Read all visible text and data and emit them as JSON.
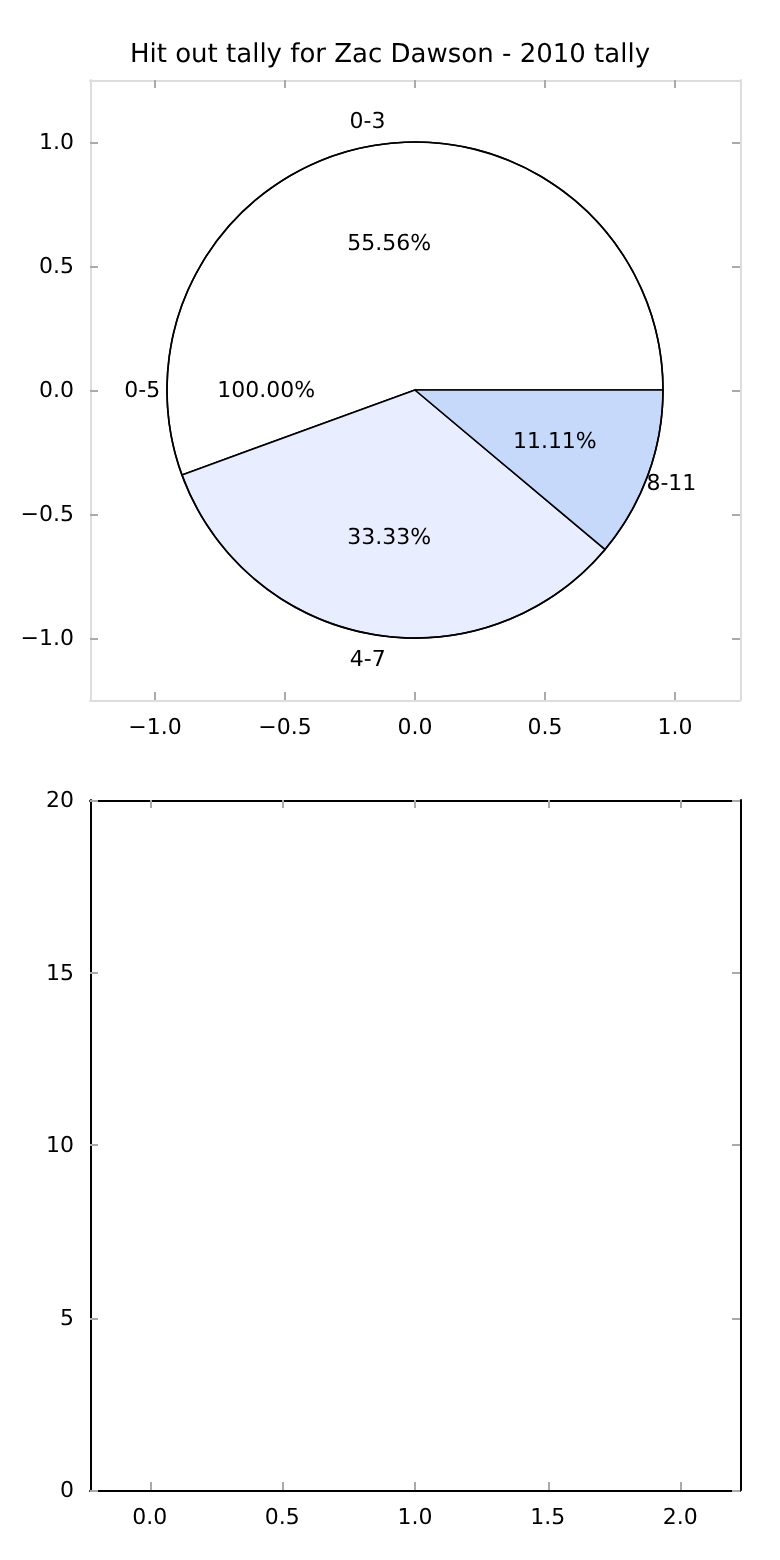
{
  "chart_data": [
    {
      "type": "scatter",
      "title": "Hit out tally for Zac Dawson - 2010 tally",
      "xlim": [
        -1.25,
        1.25
      ],
      "ylim": [
        -1.25,
        1.25
      ],
      "xticks": [
        {
          "value": -1,
          "label": "−1.0"
        },
        {
          "value": -0.5,
          "label": "−0.5"
        },
        {
          "value": 0,
          "label": "0.0"
        },
        {
          "value": 0.5,
          "label": "0.5"
        },
        {
          "value": 1,
          "label": "1.0"
        }
      ],
      "yticks": [
        {
          "value": -1,
          "label": "−1.0"
        },
        {
          "value": -0.5,
          "label": "−0.5"
        },
        {
          "value": 0,
          "label": "0.0"
        },
        {
          "value": 0.5,
          "label": "0.5"
        },
        {
          "value": 1,
          "label": "1.0"
        }
      ]
    },
    {
      "type": "pie",
      "categories": [
        "0-5"
      ],
      "values": [
        100
      ],
      "colors": [
        "#ffffff"
      ],
      "value_labels": [
        "100.00%"
      ]
    },
    {
      "type": "pie",
      "categories": [
        "0-3",
        "4-7",
        "8-11"
      ],
      "values": [
        55.56,
        33.33,
        11.11
      ],
      "colors": [
        "#ffffff",
        "#e8eeff",
        "#c6d9fb"
      ],
      "value_labels": [
        "55.56%",
        "33.33%",
        "11.11%"
      ]
    },
    {
      "type": "scatter",
      "xlim": [
        -0.225,
        2.225
      ],
      "ylim": [
        0,
        20
      ],
      "xticks": [
        {
          "value": 0,
          "label": "0.0"
        },
        {
          "value": 0.5,
          "label": "0.5"
        },
        {
          "value": 1,
          "label": "1.0"
        },
        {
          "value": 1.5,
          "label": "1.5"
        },
        {
          "value": 2,
          "label": "2.0"
        }
      ],
      "yticks": [
        0,
        5,
        10,
        15,
        20
      ]
    }
  ]
}
